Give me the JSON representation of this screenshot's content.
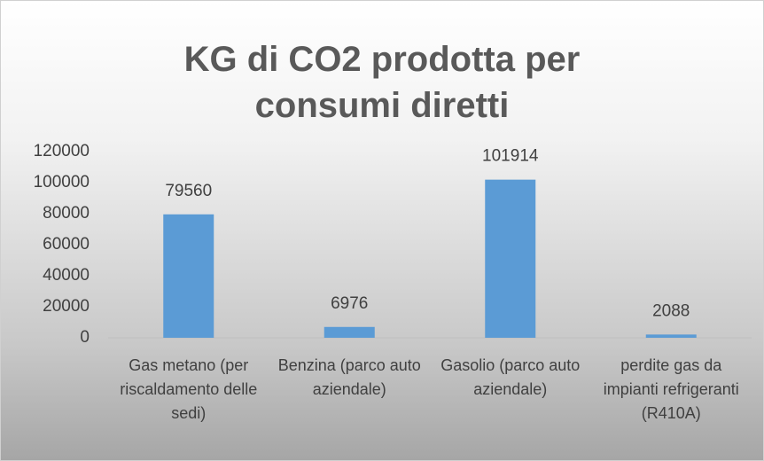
{
  "chart_data": {
    "type": "bar",
    "title": "KG di CO2 prodotta per consumi diretti",
    "categories": [
      "Gas metano (per riscaldamento delle sedi)",
      "Benzina (parco auto aziendale)",
      "Gasolio (parco auto aziendale)",
      "perdite gas da impianti refrigeranti (R410A)"
    ],
    "values": [
      79560,
      6976,
      101914,
      2088
    ],
    "color": "#5b9bd5",
    "ylim": [
      0,
      120000
    ],
    "yticks": [
      0,
      20000,
      40000,
      60000,
      80000,
      100000,
      120000
    ],
    "grid": false
  }
}
